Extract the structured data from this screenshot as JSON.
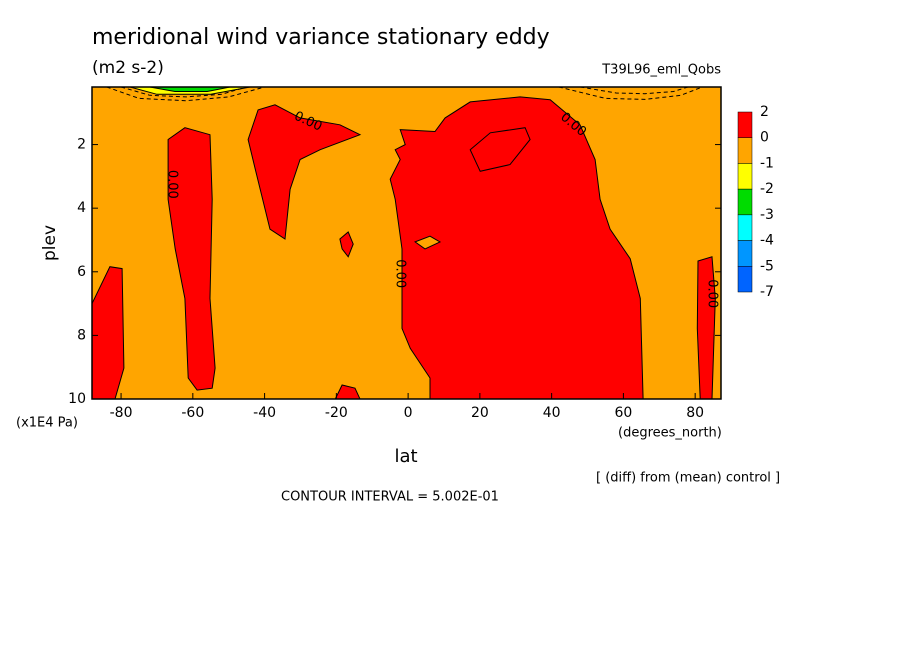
{
  "chart_data": {
    "type": "contour",
    "title": "meridional wind variance  stationary eddy",
    "subtitle": "(m2 s-2)",
    "run_label": "T39L96_eml_Qobs",
    "x_label": "lat",
    "x_unit": "(degrees_north)",
    "y_label": "plev",
    "y_unit": "(x1E4 Pa)",
    "note": "[ (diff) from (mean) control ]",
    "contour_interval": "CONTOUR INTERVAL = 5.002E-01",
    "xlim": [
      -88.1,
      87.2
    ],
    "xticks": [
      -80,
      -60,
      -40,
      -20,
      0,
      20,
      40,
      60,
      80
    ],
    "ylim": [
      10,
      0.19
    ],
    "yticks": [
      2,
      4,
      6,
      8,
      10
    ],
    "background_color": "#ffa500",
    "colorbar": {
      "levels": [
        2,
        0,
        -1,
        -2,
        -3,
        -4,
        -5,
        -7
      ],
      "colors": [
        "#ff0000",
        "#ffa500",
        "#ffff00",
        "#00dc00",
        "#00ffff",
        "#0096ff",
        "#0064ff"
      ]
    },
    "regions": [
      {
        "color": "#ff0000",
        "lat": [
          -88.1,
          -83.1,
          -79.7,
          -79.2,
          -81.7,
          -88.1
        ],
        "plev": [
          7.0,
          5.84,
          5.9,
          9.03,
          10,
          10
        ]
      },
      {
        "color": "#ff0000",
        "lat": [
          -66.9,
          -62.2,
          -55.2,
          -54.6,
          -55.2,
          -53.8,
          -54.6,
          -58.8,
          -61.3,
          -62.2,
          -64.9,
          -66.9
        ],
        "plev": [
          1.84,
          1.47,
          1.69,
          3.72,
          6.84,
          9.03,
          9.66,
          9.72,
          9.34,
          6.84,
          5.28,
          3.72
        ]
      },
      {
        "color": "#ff0000",
        "lat": [
          -44.6,
          -41.8,
          -37.1,
          -30.1,
          -19.0,
          -13.4,
          -24.5,
          -30.1,
          -32.9,
          -34.3,
          -38.5,
          -42.6
        ],
        "plev": [
          1.84,
          0.91,
          0.75,
          1.16,
          1.38,
          1.69,
          2.16,
          2.47,
          3.41,
          4.97,
          4.66,
          2.78
        ]
      },
      {
        "color": "#ff0000",
        "lat": [
          -19.0,
          -16.7,
          -15.3,
          -16.7,
          -18.4
        ],
        "plev": [
          4.97,
          4.75,
          5.13,
          5.53,
          5.28
        ]
      },
      {
        "color": "#ff0000",
        "lat": [
          -20.3,
          -18.4,
          -14.8,
          -13.4
        ],
        "plev": [
          10,
          9.56,
          9.66,
          10
        ]
      },
      {
        "color": "#ff0000",
        "lat": [
          -2.2,
          7.5,
          10.3,
          17.3,
          31.2,
          39.6,
          47.9,
          52.1,
          53.5,
          56.3,
          61.9,
          64.7,
          65.5,
          6.1,
          6.1,
          0.6,
          -1.7,
          -1.7,
          -3.6,
          -5.0,
          -2.2,
          -3.6,
          -0.8
        ],
        "plev": [
          1.53,
          1.59,
          1.16,
          0.66,
          0.5,
          0.59,
          1.38,
          2.47,
          3.72,
          4.66,
          5.59,
          6.84,
          10,
          10,
          9.34,
          8.41,
          7.78,
          5.28,
          3.72,
          3.09,
          2.47,
          2.16,
          2.0
        ]
      },
      {
        "color": "#ffa500",
        "lat": [
          1.95,
          6.1,
          8.9,
          4.7
        ],
        "plev": [
          5.06,
          4.88,
          5.06,
          5.28
        ]
      },
      {
        "color": "#ff0000",
        "lat": [
          17.3,
          22.9,
          32.6,
          34.0,
          28.4,
          20.1
        ],
        "plev": [
          2.16,
          1.63,
          1.47,
          1.84,
          2.63,
          2.84
        ]
      },
      {
        "color": "#ff0000",
        "lat": [
          80.8,
          84.7,
          85.6,
          84.7,
          81.4,
          80.6
        ],
        "plev": [
          5.66,
          5.53,
          6.84,
          10,
          10,
          7.78
        ]
      },
      {
        "color": "#ffff00",
        "lat": [
          -77.5,
          -70.0,
          -55.0,
          -44.0
        ],
        "plev": [
          0.19,
          0.42,
          0.42,
          0.19
        ]
      },
      {
        "color": "#00dc00",
        "lat": [
          -72.0,
          -65.0,
          -56.0,
          -49.6
        ],
        "plev": [
          0.19,
          0.33,
          0.33,
          0.19
        ]
      }
    ],
    "dashed_contours": [
      {
        "lat": [
          -84.0,
          -75.0,
          -62.0,
          -50.0,
          -40.0
        ],
        "plev": [
          0.19,
          0.55,
          0.62,
          0.5,
          0.19
        ]
      },
      {
        "lat": [
          -80.0,
          -72.0,
          -62.0,
          -52.0,
          -45.0
        ],
        "plev": [
          0.19,
          0.45,
          0.5,
          0.42,
          0.19
        ]
      },
      {
        "lat": [
          42.0,
          55.0,
          66.0,
          76.0,
          82.0
        ],
        "plev": [
          0.19,
          0.55,
          0.58,
          0.45,
          0.19
        ]
      },
      {
        "lat": [
          48.0,
          58.0,
          66.0,
          74.0,
          78.0
        ],
        "plev": [
          0.19,
          0.38,
          0.4,
          0.33,
          0.19
        ]
      }
    ],
    "contour_labels": [
      {
        "text": "0.00",
        "lat": -27.9,
        "plev": 1.28
      },
      {
        "text": "0.00",
        "lat": 46.0,
        "plev": 1.38
      },
      {
        "text": "0.00",
        "lat": -65.8,
        "plev": 3.25
      },
      {
        "text": "0.00",
        "lat": -2.2,
        "plev": 6.06
      },
      {
        "text": "0.00",
        "lat": 84.7,
        "plev": 6.69
      }
    ]
  }
}
